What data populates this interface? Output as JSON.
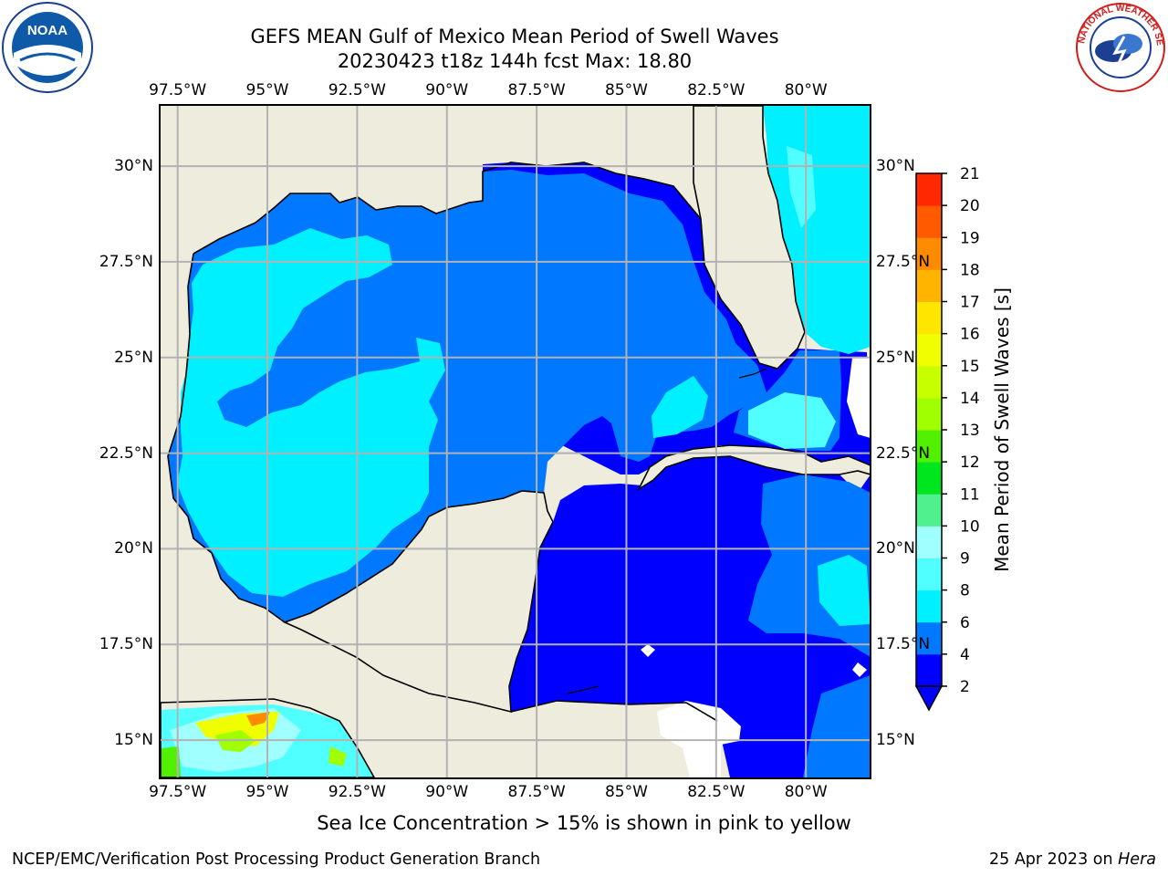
{
  "title": {
    "line1": "GEFS MEAN Gulf of Mexico Mean Period of Swell Waves",
    "line2": "20230423 t18z 144h fcst   Max: 18.80"
  },
  "logos": {
    "noaa": "NOAA",
    "nws": "NATIONAL WEATHER SERVICE"
  },
  "map": {
    "lon_labels": [
      "97.5°W",
      "95°W",
      "92.5°W",
      "90°W",
      "87.5°W",
      "85°W",
      "82.5°W",
      "80°W"
    ],
    "lat_labels": [
      "30°N",
      "27.5°N",
      "25°N",
      "22.5°N",
      "20°N",
      "17.5°N",
      "15°N"
    ],
    "lat_labels_right": [
      "30°N",
      "27.5°N",
      "25°N",
      "22.5°N",
      "20°N",
      "17.5°N",
      "15°N"
    ],
    "lon_values": [
      -97.5,
      -95,
      -92.5,
      -90,
      -87.5,
      -85,
      -82.5,
      -80
    ],
    "lat_values": [
      30,
      27.5,
      25,
      22.5,
      20,
      17.5,
      15
    ],
    "extent": {
      "lon_min": -98,
      "lon_max": -78.2,
      "lat_min": 14,
      "lat_max": 31.6
    },
    "colors": {
      "land": "#eeecdc",
      "grid": "#b2b2b2",
      "coast": "#000000"
    }
  },
  "colorbar": {
    "label": "Mean Period of Swell Waves [s]",
    "ticks": [
      "2",
      "4",
      "6",
      "8",
      "9",
      "10",
      "11",
      "12",
      "13",
      "14",
      "15",
      "16",
      "17",
      "18",
      "19",
      "20",
      "21"
    ],
    "colors": [
      "#0000ff",
      "#0078ff",
      "#00f0ff",
      "#50ffff",
      "#a0ffff",
      "#50f08c",
      "#00e61e",
      "#50f000",
      "#a0ff00",
      "#c8ff00",
      "#f0ff00",
      "#ffe600",
      "#ffb400",
      "#ff8c00",
      "#ff5a00",
      "#ff2800",
      "#ff0000"
    ],
    "extend_color": "#0000ff"
  },
  "caption": "Sea Ice Concentration > 15% is shown in pink to yellow",
  "credit": "NCEP/EMC/Verification Post Processing Product Generation Branch",
  "date_text": "25 Apr 2023 on ",
  "date_host": "Hera"
}
